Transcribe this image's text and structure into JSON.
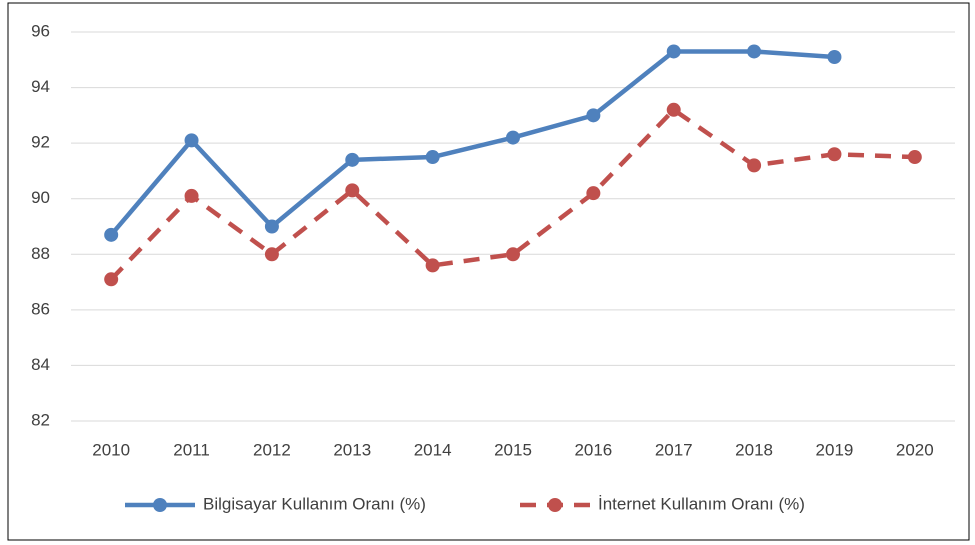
{
  "chart_data": {
    "type": "line",
    "categories": [
      "2010",
      "2011",
      "2012",
      "2013",
      "2014",
      "2015",
      "2016",
      "2017",
      "2018",
      "2019",
      "2020"
    ],
    "series": [
      {
        "name": "Bilgisayar Kullanım Oranı (%)",
        "color": "#4f81bd",
        "dashed": false,
        "values": [
          88.7,
          92.1,
          89.0,
          91.4,
          91.5,
          92.2,
          93.0,
          95.3,
          95.3,
          95.1,
          null
        ]
      },
      {
        "name": "İnternet Kullanım Oranı (%)",
        "color": "#c0504d",
        "dashed": true,
        "values": [
          87.1,
          90.1,
          88.0,
          90.3,
          87.6,
          88.0,
          90.2,
          93.2,
          91.2,
          91.6,
          91.5
        ]
      }
    ],
    "ylim": [
      82,
      96
    ],
    "yticks": [
      82,
      84,
      86,
      88,
      90,
      92,
      94,
      96
    ],
    "grid": true,
    "legend": "bottom"
  }
}
